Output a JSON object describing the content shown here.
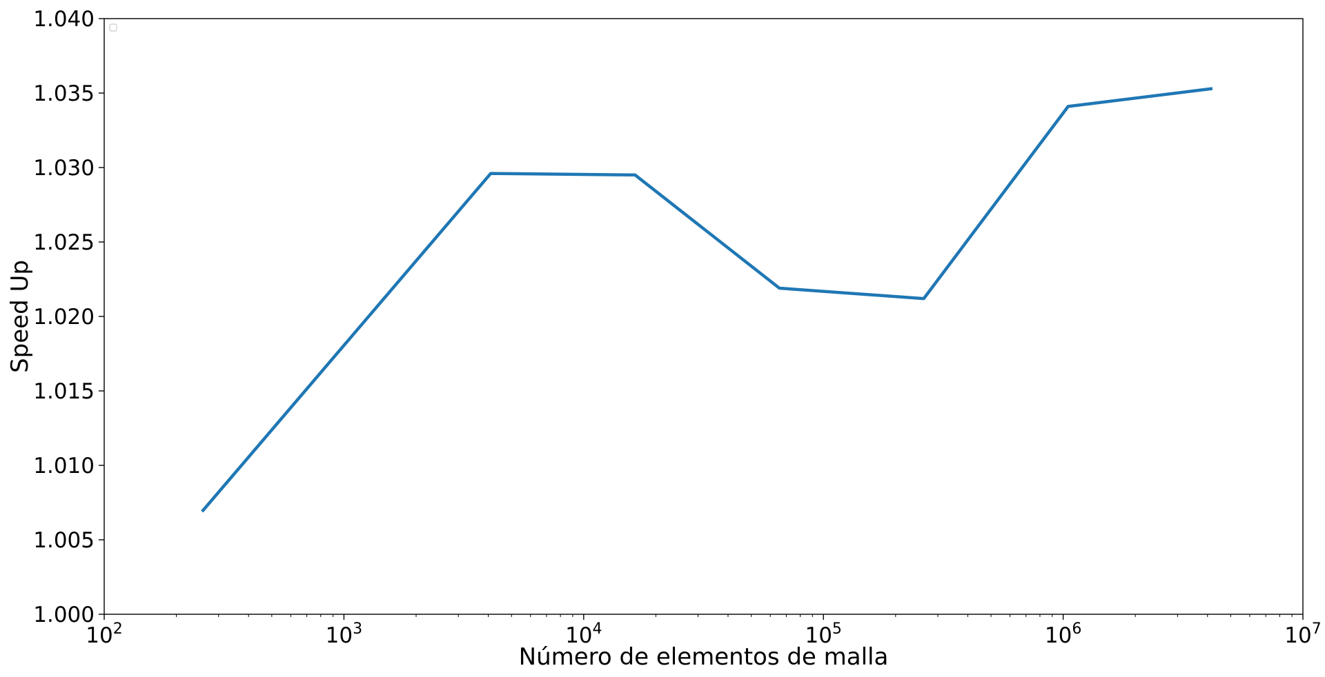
{
  "chart_data": {
    "type": "line",
    "xscale": "log",
    "x": [
      256,
      4096,
      16384,
      65536,
      262144,
      1048576,
      4194304
    ],
    "series": [
      {
        "values": [
          1.0069,
          1.0296,
          1.0295,
          1.0219,
          1.0212,
          1.0341,
          1.0353
        ],
        "color": "#1f77b4"
      }
    ],
    "title": "",
    "xlabel": "Número de elementos de malla",
    "ylabel": "Speed Up",
    "xlim": [
      100,
      10000000
    ],
    "ylim": [
      1.0,
      1.04
    ],
    "x_tick_base": "10",
    "x_tick_exponents": [
      "2",
      "3",
      "4",
      "5",
      "6",
      "7"
    ],
    "y_tick_labels": [
      "1.000",
      "1.005",
      "1.010",
      "1.015",
      "1.020",
      "1.025",
      "1.030",
      "1.035",
      "1.040"
    ],
    "grid": false,
    "legend": "top-left (empty)"
  }
}
